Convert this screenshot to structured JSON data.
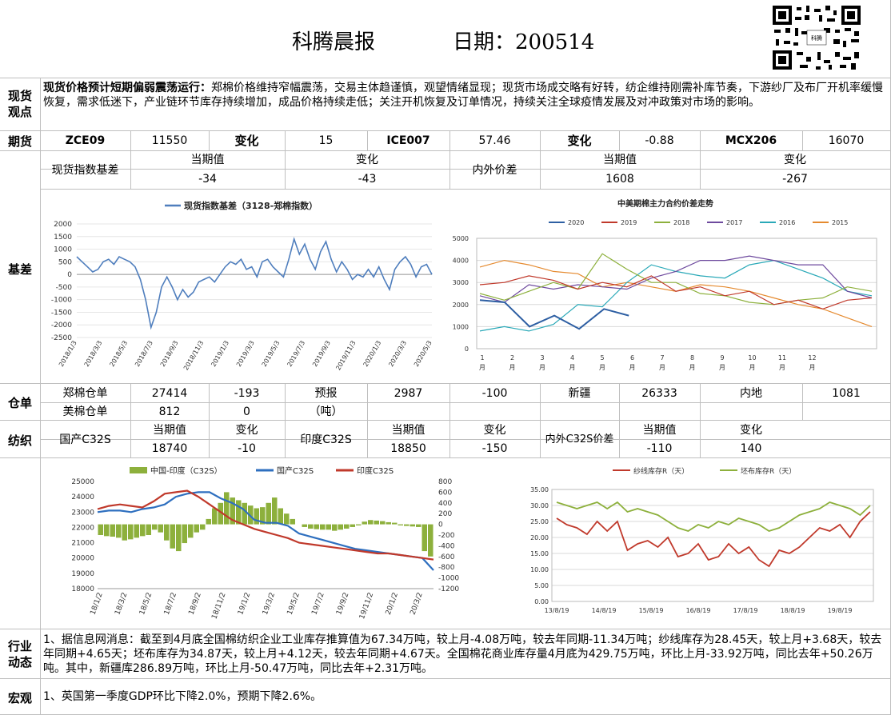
{
  "header": {
    "title": "科腾晨报",
    "date_label": "日期：200514"
  },
  "view": {
    "label_line1": "现货",
    "label_line2": "观点",
    "headline": "现货价格预计短期偏弱震荡运行：",
    "body": "郑棉价格维持窄幅震荡，交易主体趋谨慎，观望情绪显现；现货市场成交略有好转，纺企维持刚需补库节奏，下游纱厂及布厂开机率缓慢恢复，需求低迷下，产业链环节库存持续增加，成品价格持续走低；关注开机恢复及订单情况，持续关注全球疫情发展及对冲政策对市场的影响。"
  },
  "futures": {
    "label": "期货",
    "c1": "ZCE09",
    "v1": "11550",
    "ch_label1": "变化",
    "ch1": "15",
    "c2": "ICE007",
    "v2": "57.46",
    "ch_label2": "变化",
    "ch2": "-0.88",
    "c3": "MCX206",
    "v3": "16070"
  },
  "basis": {
    "label": "基差",
    "spot_index_label": "现货指数基差",
    "cur_label": "当期值",
    "chg_label": "变化",
    "cur": "-34",
    "chg": "-43",
    "inout_label": "内外价差",
    "cur_label2": "当期值",
    "chg_label2": "变化",
    "cur2": "1608",
    "chg2": "-267"
  },
  "warehouse": {
    "label": "仓单",
    "zheng_label": "郑棉仓单",
    "zheng_val": "27414",
    "zheng_chg": "-193",
    "forecast_label1": "预报",
    "forecast_label2": "（吨）",
    "forecast_val": "2987",
    "forecast_chg": "-100",
    "xj_label": "新疆",
    "xj_val": "26333",
    "nd_label": "内地",
    "nd_val": "1081",
    "us_label": "美棉仓单",
    "us_val": "812",
    "us_chg": "0"
  },
  "textile": {
    "label": "纺织",
    "dom_label": "国产C32S",
    "cur_label": "当期值",
    "chg_label": "变化",
    "dom_cur": "18740",
    "dom_chg": "-10",
    "ind_label": "印度C32S",
    "ind_cur": "18850",
    "ind_chg": "-150",
    "spread_label": "内外C32S价差",
    "spread_cur": "-110",
    "spread_chg": "140"
  },
  "industry": {
    "label_line1": "行业",
    "label_line2": "动态",
    "text": "1、据信息网消息：截至到4月底全国棉纺织企业工业库存推算值为67.34万吨，较上月-4.08万吨，较去年同期-11.34万吨；纱线库存为28.45天，较上月+3.68天，较去年同期+4.65天；坯布库存为34.87天，较上月+4.12天，较去年同期+4.67天。全国棉花商业库存量4月底为429.75万吨，环比上月-33.92万吨，同比去年+50.26万吨。其中，新疆库286.89万吨，环比上月-50.47万吨，同比去年+2.31万吨。"
  },
  "macro": {
    "label": "宏观",
    "text": "1、英国第一季度GDP环比下降2.0%，预期下降2.6%。"
  },
  "chart_data": [
    {
      "type": "line",
      "title": "",
      "legend": [
        "现货指数基差（3128-郑棉指数）"
      ],
      "ylim": [
        -2500,
        2000
      ],
      "yticks": [
        "2000",
        "1500",
        "1000",
        "500",
        "0",
        "-500",
        "-1000",
        "-1500",
        "-2000",
        "-2500"
      ],
      "xticks": [
        "2018/1/3",
        "2018/3/3",
        "2018/5/3",
        "2018/7/3",
        "2018/9/3",
        "2018/11/3",
        "2019/1/3",
        "2019/3/3",
        "2019/5/3",
        "2019/7/3",
        "2019/9/3",
        "2019/11/3",
        "2020/1/3",
        "2020/3/3",
        "2020/5/3"
      ],
      "series": [
        {
          "name": "现货指数基差（3128-郑棉指数）",
          "color": "#4f7ebd",
          "values": [
            700,
            500,
            300,
            100,
            200,
            500,
            600,
            400,
            700,
            600,
            500,
            300,
            -200,
            -1000,
            -2100,
            -1500,
            -500,
            -100,
            -500,
            -1000,
            -600,
            -900,
            -700,
            -300,
            -200,
            -100,
            -300,
            0,
            300,
            500,
            400,
            600,
            200,
            300,
            -100,
            500,
            600,
            300,
            100,
            -100,
            600,
            1400,
            800,
            1200,
            600,
            200,
            900,
            1300,
            600,
            100,
            500,
            200,
            -200,
            0,
            -100,
            200,
            -100,
            300,
            -200,
            -600,
            200,
            500,
            700,
            400,
            -100,
            300,
            400,
            0
          ]
        }
      ]
    },
    {
      "type": "line",
      "title": "中美期棉主力合约价差走势",
      "ylim": [
        0,
        5000
      ],
      "yticks": [
        "5000",
        "4000",
        "3000",
        "2000",
        "1000",
        "0"
      ],
      "xticks": [
        "1月",
        "2月",
        "3月",
        "4月",
        "5月",
        "6月",
        "7月",
        "8月",
        "9月",
        "10月",
        "11月",
        "12月"
      ],
      "series": [
        {
          "name": "2020",
          "color": "#2e5fa3",
          "values": [
            2200,
            2100,
            1000,
            1500,
            900,
            1800,
            1500
          ]
        },
        {
          "name": "2019",
          "color": "#c0392b",
          "values": [
            2900,
            3000,
            3300,
            3100,
            2700,
            3000,
            2800,
            3300,
            2600,
            2800,
            2400,
            2600,
            2000,
            2200,
            1800,
            2200,
            2300
          ]
        },
        {
          "name": "2018",
          "color": "#8db03c",
          "values": [
            2500,
            2200,
            2600,
            3000,
            2700,
            4300,
            3600,
            3000,
            3000,
            2500,
            2400,
            2100,
            2000,
            2200,
            2300,
            2800,
            2600
          ]
        },
        {
          "name": "2017",
          "color": "#6e4a9e",
          "values": [
            2400,
            2100,
            2900,
            2700,
            2900,
            2800,
            2700,
            3200,
            3500,
            4000,
            4000,
            4200,
            4000,
            3800,
            3800,
            2600,
            2300
          ]
        },
        {
          "name": "2016",
          "color": "#2aa9b8",
          "values": [
            800,
            1000,
            800,
            1100,
            2000,
            1900,
            3000,
            3800,
            3500,
            3300,
            3200,
            3800,
            4000,
            3600,
            3200,
            2600,
            2400
          ]
        },
        {
          "name": "2015",
          "color": "#e58a2f",
          "values": [
            3700,
            4000,
            3800,
            3500,
            3400,
            2800,
            3000,
            2800,
            2600,
            2900,
            2800,
            2600,
            2300,
            2000,
            1800,
            1400,
            1000
          ]
        }
      ]
    },
    {
      "type": "bar",
      "title": "",
      "legend": [
        "中国-印度（C32S）",
        "国产C32S",
        "印度C32S"
      ],
      "ylim_left": [
        18000,
        25000
      ],
      "ylim_right": [
        -1200,
        800
      ],
      "yticks_left": [
        "25000",
        "24000",
        "23000",
        "22000",
        "21000",
        "20000",
        "19000",
        "18000"
      ],
      "yticks_right": [
        "800",
        "600",
        "400",
        "200",
        "0",
        "-200",
        "-400",
        "-600",
        "-800",
        "-1000",
        "-1200"
      ],
      "xticks": [
        "18/1/2",
        "18/3/2",
        "18/5/2",
        "18/7/2",
        "18/9/2",
        "18/11/2",
        "19/1/2",
        "19/3/2",
        "19/5/2",
        "19/7/2",
        "19/9/2",
        "19/11/2",
        "20/1/2",
        "20/3/2"
      ],
      "series": [
        {
          "name": "中国-印度（C32S）",
          "color": "#8db03c",
          "values": [
            -200,
            -220,
            -230,
            -250,
            -300,
            -280,
            -250,
            -220,
            -200,
            -100,
            -150,
            -300,
            -450,
            -500,
            -350,
            -250,
            -150,
            -100,
            100,
            300,
            400,
            600,
            500,
            450,
            400,
            350,
            300,
            320,
            400,
            500,
            300,
            200,
            100,
            0,
            -50,
            -80,
            -90,
            -100,
            -100,
            -120,
            -100,
            -80,
            -50,
            -20,
            50,
            80,
            70,
            60,
            40,
            30,
            -20,
            -30,
            -40,
            -50,
            -500,
            -600
          ]
        },
        {
          "name": "国产C32S",
          "color": "#2e6fbf",
          "values": [
            23000,
            23100,
            23100,
            23000,
            23200,
            23300,
            23500,
            24000,
            24200,
            24300,
            24300,
            23900,
            23600,
            23200,
            22500,
            22300,
            22300,
            22100,
            21600,
            21400,
            21200,
            21000,
            20800,
            20600,
            20500,
            20400,
            20300,
            20200,
            20100,
            20000,
            19200
          ]
        },
        {
          "name": "印度C32S",
          "color": "#c0392b",
          "values": [
            23200,
            23400,
            23500,
            23400,
            23300,
            23700,
            24200,
            24300,
            24400,
            24000,
            23500,
            23000,
            22500,
            22200,
            21900,
            21700,
            21500,
            21300,
            21000,
            20900,
            20800,
            20700,
            20600,
            20500,
            20400,
            20300,
            20300,
            20200,
            20100,
            20000,
            19900
          ]
        }
      ]
    },
    {
      "type": "line",
      "title": "",
      "legend": [
        "纱线库存R（天）",
        "坯布库存R（天）"
      ],
      "ylim": [
        0,
        35
      ],
      "yticks": [
        "35.00",
        "30.00",
        "25.00",
        "20.00",
        "15.00",
        "10.00",
        "5.00",
        "0.00"
      ],
      "xticks": [
        "13/8/19",
        "14/8/19",
        "15/8/19",
        "16/8/19",
        "17/8/19",
        "18/8/19",
        "19/8/19"
      ],
      "series": [
        {
          "name": "纱线库存R（天）",
          "color": "#c0392b",
          "values": [
            26,
            24,
            23,
            21,
            25,
            22,
            25,
            16,
            18,
            19,
            17,
            20,
            14,
            15,
            18,
            13,
            14,
            18,
            15,
            17,
            13,
            11,
            16,
            15,
            17,
            20,
            23,
            22,
            24,
            20,
            25,
            28
          ]
        },
        {
          "name": "坯布库存R（天）",
          "color": "#8db03c",
          "values": [
            31,
            30,
            29,
            30,
            31,
            29,
            31,
            28,
            29,
            28,
            27,
            25,
            23,
            22,
            24,
            23,
            25,
            24,
            26,
            25,
            24,
            22,
            23,
            25,
            27,
            28,
            29,
            31,
            30,
            29,
            27,
            30
          ]
        }
      ]
    }
  ]
}
